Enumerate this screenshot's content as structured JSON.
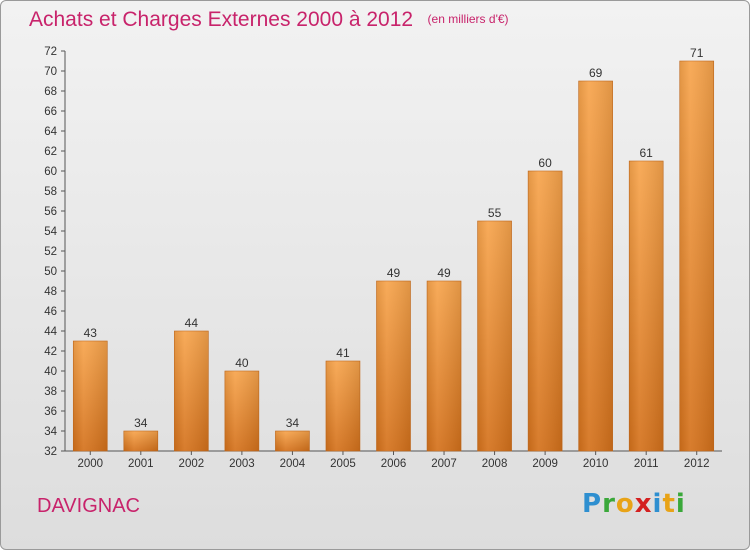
{
  "title": "Achats et Charges Externes 2000 à 2012",
  "unit": "(en milliers d'€)",
  "commune": "DAVIGNAC",
  "logo": {
    "letters": [
      "P",
      "r",
      "o",
      "x",
      "i",
      "t",
      "i"
    ],
    "colors": [
      "#2e8fd0",
      "#3aa83a",
      "#e8a317",
      "#d42020",
      "#2e8fd0",
      "#e8a317",
      "#3aa83a"
    ]
  },
  "colors": {
    "accent": "#c8236b",
    "bar_light": "#f7a44c",
    "bar_dark": "#d4711b"
  },
  "chart_data": {
    "type": "bar",
    "categories": [
      "2000",
      "2001",
      "2002",
      "2003",
      "2004",
      "2005",
      "2006",
      "2007",
      "2008",
      "2009",
      "2010",
      "2011",
      "2012"
    ],
    "values": [
      43,
      34,
      44,
      40,
      34,
      41,
      49,
      49,
      55,
      60,
      69,
      61,
      71
    ],
    "ylim": [
      32,
      72
    ],
    "yticks": [
      32,
      34,
      36,
      38,
      40,
      42,
      44,
      46,
      48,
      50,
      52,
      54,
      56,
      58,
      60,
      62,
      64,
      66,
      68,
      70,
      72
    ],
    "grid": false
  }
}
